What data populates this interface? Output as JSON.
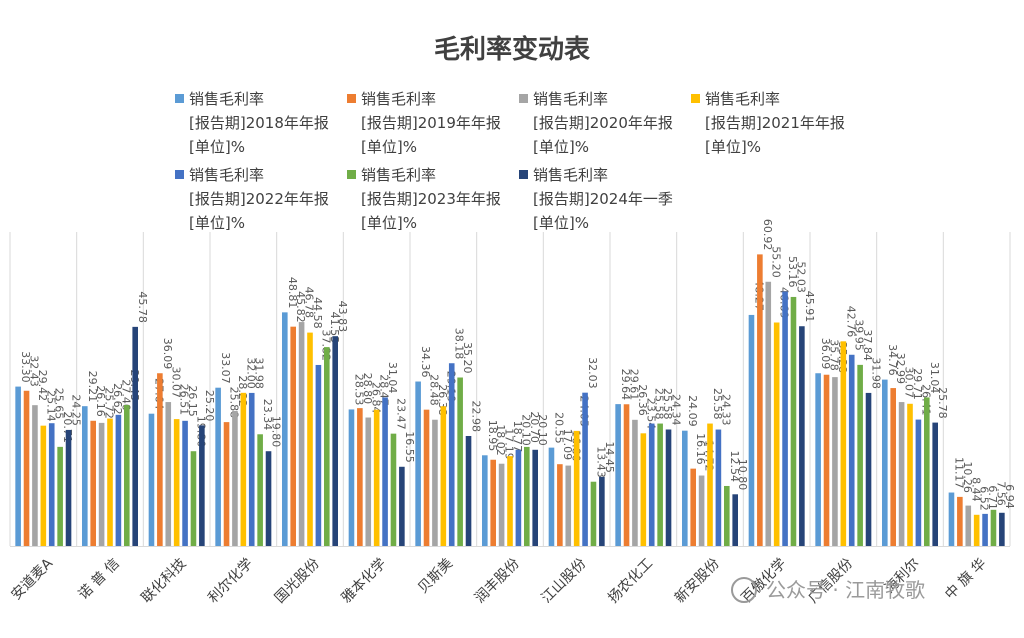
{
  "chart_data": {
    "type": "bar",
    "title": "毛利率变动表",
    "categories": [
      "安道麦A",
      "诺 普 信",
      "联化科技",
      "利尔化学",
      "国光股份",
      "雅本化学",
      "贝斯美",
      "润丰股份",
      "江山股份",
      "扬农化工",
      "新安股份",
      "百傲化学",
      "广信股份",
      "海利尔",
      "中 旗 华"
    ],
    "series": [
      {
        "name": "销售毛利率|[报告期]2018年年报|[单位]%",
        "color": "#5B9BD5",
        "values": [
          33.3,
          29.21,
          27.64,
          33.07,
          48.81,
          28.53,
          34.36,
          18.95,
          20.55,
          29.64,
          24.09,
          48.27,
          36.09,
          34.76,
          11.17
        ]
      },
      {
        "name": "销售毛利率|[报告期]2019年年报|[单位]%",
        "color": "#ED7D31",
        "values": [
          32.43,
          26.16,
          36.09,
          25.88,
          45.82,
          28.8,
          28.48,
          18.02,
          17.09,
          29.61,
          16.16,
          60.92,
          35.78,
          32.99,
          10.26
        ]
      },
      {
        "name": "销售毛利率|[报告期]2020年年报|[单位]%",
        "color": "#A5A5A5",
        "values": [
          29.42,
          25.72,
          30.07,
          28.22,
          46.78,
          26.84,
          26.38,
          17.19,
          16.8,
          26.36,
          14.72,
          55.2,
          35.28,
          30.07,
          8.44
        ]
      },
      {
        "name": "销售毛利率|[报告期]2021年年报|[单位]%",
        "color": "#FFC000",
        "values": [
          25.14,
          26.62,
          26.51,
          32.0,
          44.58,
          28.47,
          29.19,
          18.77,
          24.05,
          23.54,
          25.58,
          46.69,
          42.76,
          29.71,
          6.52
        ]
      },
      {
        "name": "销售毛利率|[报告期]2022年年报|[单位]%",
        "color": "#4472C4",
        "values": [
          25.65,
          27.4,
          26.15,
          31.98,
          37.82,
          31.04,
          38.18,
          20.1,
          32.03,
          25.58,
          24.33,
          53.16,
          39.95,
          26.41,
          6.71
        ]
      },
      {
        "name": "销售毛利率|[报告期]2023年年报|[单位]%",
        "color": "#70AD47",
        "values": [
          20.71,
          29.45,
          19.8,
          23.34,
          41.55,
          23.47,
          35.2,
          20.7,
          13.43,
          25.58,
          12.54,
          52.03,
          37.84,
          31.04,
          7.56
        ]
      },
      {
        "name": "销售毛利率|[报告期]2024年一季|[单位]%",
        "color": "#264478",
        "values": [
          24.25,
          45.78,
          25.2,
          19.8,
          43.83,
          16.55,
          22.98,
          20.1,
          14.45,
          24.34,
          10.8,
          45.91,
          31.98,
          25.78,
          6.94
        ]
      }
    ],
    "value_labels": [
      [
        "33.30",
        "32.43",
        "29.42",
        "25.14",
        "25.65",
        "20.71",
        "24.25"
      ],
      [
        "29.21",
        "26.16",
        "25.72",
        "26.62",
        "27.40",
        "29.45",
        "45.78"
      ],
      [
        "27.64",
        "36.09",
        "30.07",
        "26.51",
        "26.15",
        "19.80",
        "25.20"
      ],
      [
        "33.07",
        "25.88",
        "28.22",
        "32.00",
        "31.98",
        "23.34",
        "19.80"
      ],
      [
        "48.81",
        "45.82",
        "46.78",
        "44.58",
        "37.82",
        "41.55",
        "43.83"
      ],
      [
        "28.53",
        "28.80",
        "26.84",
        "28.47",
        "31.04",
        "23.47",
        "16.55"
      ],
      [
        "34.36",
        "28.48",
        "26.38",
        "29.19",
        "38.18",
        "35.20",
        "22.98"
      ],
      [
        "18.95",
        "18.02",
        "17.19",
        "18.77",
        "20.10",
        "20.70",
        "20.10"
      ],
      [
        "20.55",
        "17.09",
        "16.80",
        "24.05",
        "32.03",
        "13.43",
        "14.45"
      ],
      [
        "29.64",
        "29.61",
        "26.36",
        "23.54",
        "25.58",
        "25.58",
        "24.34"
      ],
      [
        "24.09",
        "16.16",
        "14.72",
        "25.58",
        "24.33",
        "12.54",
        "10.80"
      ],
      [
        "48.27",
        "60.92",
        "55.20",
        "46.69",
        "53.16",
        "52.03",
        "45.91"
      ],
      [
        "36.09",
        "35.78",
        "35.28",
        "42.76",
        "39.95",
        "37.84",
        "31.98"
      ],
      [
        "34.76",
        "32.99",
        "30.07",
        "29.71",
        "26.41",
        "31.04",
        "25.78"
      ],
      [
        "11.17",
        "10.26",
        "8.44",
        "6.52",
        "6.71",
        "7.56",
        "6.94"
      ]
    ],
    "ylim": [
      0,
      66
    ],
    "grid": false,
    "legend": "top",
    "xlabel": "",
    "ylabel": ""
  },
  "watermark": "公众号 · 江南牧歌"
}
